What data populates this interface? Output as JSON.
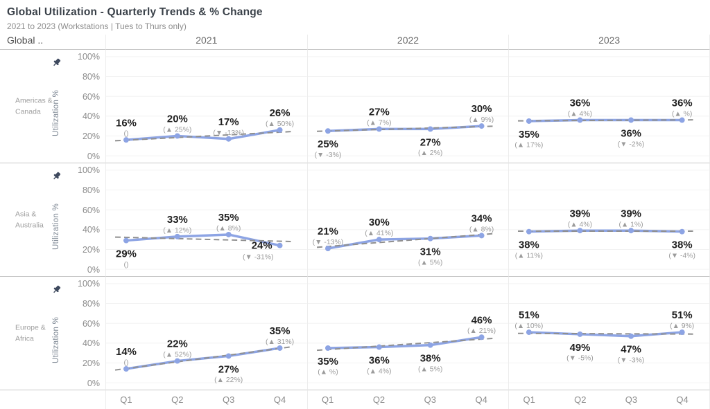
{
  "header": {
    "title": "Global Utilization - Quarterly Trends & % Change",
    "subtitle": "2021 to 2023 (Workstations | Tues to Thurs only)",
    "corner_label": "Global ..",
    "years": [
      "2021",
      "2022",
      "2023"
    ]
  },
  "axis": {
    "y_label": "Utilization %",
    "pin_icon": "pin-icon",
    "y_ticks": [
      {
        "label": "100%",
        "value": 100
      },
      {
        "label": "80%",
        "value": 80
      },
      {
        "label": "60%",
        "value": 60
      },
      {
        "label": "40%",
        "value": 40
      },
      {
        "label": "20%",
        "value": 20
      },
      {
        "label": "0%",
        "value": 0
      }
    ],
    "x_ticks": [
      "Q1",
      "Q2",
      "Q3",
      "Q4"
    ]
  },
  "colors": {
    "line": "#8da4e4",
    "trend": "#8f8f8f",
    "value_label": "#202020",
    "change_label": "#9b9b9b",
    "grid": "#f0f0f0",
    "row_divider": "#c7c7c7",
    "pane_divider": "#ededed",
    "title": "#3a4149",
    "subtitle": "#8e8e8e",
    "tick_label": "#8b8b8b",
    "region_label": "#9e9e9e",
    "pin": "#3f4a5f"
  },
  "chart_data": {
    "type": "line",
    "categories": [
      "Q1",
      "Q2",
      "Q3",
      "Q4"
    ],
    "ylim": [
      0,
      100
    ],
    "grid": "on",
    "trend_line": "dashed gray per pane",
    "rows": [
      {
        "region": "Americas & Canada",
        "region_lines": "Americas &\nCanada",
        "series": [
          {
            "year": "2021",
            "values": [
              16,
              20,
              17,
              26
            ],
            "changes": [
              "()",
              "(▲ 25%)",
              "(▼ -13%)",
              "(▲ 50%)"
            ],
            "label_pos": [
              "above",
              "above",
              "above",
              "above"
            ]
          },
          {
            "year": "2022",
            "values": [
              25,
              27,
              27,
              30
            ],
            "changes": [
              "(▼ -3%)",
              "(▲ 7%)",
              "(▲ 2%)",
              "(▲ 9%)"
            ],
            "label_pos": [
              "below",
              "above",
              "below",
              "above"
            ]
          },
          {
            "year": "2023",
            "values": [
              35,
              36,
              36,
              36
            ],
            "changes": [
              "(▲ 17%)",
              "(▲ 4%)",
              "(▼ -2%)",
              "(▲ %)"
            ],
            "label_pos": [
              "below",
              "above",
              "below",
              "above"
            ]
          }
        ]
      },
      {
        "region": "Asia & Australia",
        "region_lines": "Asia &\nAustralia",
        "series": [
          {
            "year": "2021",
            "values": [
              29,
              33,
              35,
              24
            ],
            "changes": [
              "()",
              "(▲ 12%)",
              "(▲ 8%)",
              "(▼ -31%)"
            ],
            "label_pos": [
              "below",
              "above",
              "above",
              "left"
            ]
          },
          {
            "year": "2022",
            "values": [
              21,
              30,
              31,
              34
            ],
            "changes": [
              "(▼ -13%)",
              "(▲ 41%)",
              "(▲ 5%)",
              "(▲ 8%)"
            ],
            "label_pos": [
              "above",
              "above",
              "below",
              "above"
            ]
          },
          {
            "year": "2023",
            "values": [
              38,
              39,
              39,
              38
            ],
            "changes": [
              "(▲ 11%)",
              "(▲ 4%)",
              "(▲ 1%)",
              "(▼ -4%)"
            ],
            "label_pos": [
              "below",
              "above",
              "above",
              "below"
            ]
          }
        ]
      },
      {
        "region": "Europe & Africa",
        "region_lines": "Europe &\nAfrica",
        "series": [
          {
            "year": "2021",
            "values": [
              14,
              22,
              27,
              35
            ],
            "changes": [
              "()",
              "(▲ 52%)",
              "(▲ 22%)",
              "(▲ 31%)"
            ],
            "label_pos": [
              "above",
              "above",
              "below",
              "above"
            ]
          },
          {
            "year": "2022",
            "values": [
              35,
              36,
              38,
              46
            ],
            "changes": [
              "(▲ %)",
              "(▲ 4%)",
              "(▲ 5%)",
              "(▲ 21%)"
            ],
            "label_pos": [
              "below",
              "below",
              "below",
              "above"
            ]
          },
          {
            "year": "2023",
            "values": [
              51,
              49,
              47,
              51
            ],
            "changes": [
              "(▲ 10%)",
              "(▼ -5%)",
              "(▼ -3%)",
              "(▲ 9%)"
            ],
            "label_pos": [
              "above",
              "below",
              "below",
              "above"
            ]
          }
        ]
      }
    ]
  }
}
